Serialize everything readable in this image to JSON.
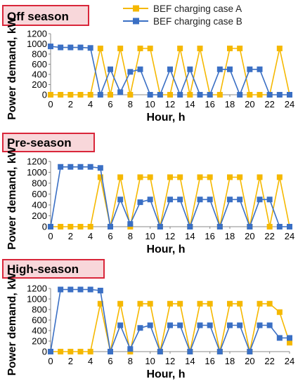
{
  "legend": {
    "items": [
      {
        "label": "BEF charging case A",
        "color": "#F5B800"
      },
      {
        "label": "BEF charging case B",
        "color": "#3A6FC4"
      }
    ]
  },
  "colors": {
    "panel_label_bg": "#F8D7DA",
    "panel_label_border": "#D9263A",
    "axis": "#888888",
    "grid": "#D9D9D9"
  },
  "chart_data": [
    {
      "type": "line",
      "title": "Off season",
      "xlabel": "Hour, h",
      "ylabel": "Power demand, kW",
      "xlim": [
        0,
        24
      ],
      "ylim": [
        0,
        1200
      ],
      "xticks": [
        "0",
        "2",
        "4",
        "6",
        "8",
        "10",
        "12",
        "14",
        "16",
        "18",
        "20",
        "22",
        "24"
      ],
      "yticks": [
        "0",
        "200",
        "400",
        "600",
        "800",
        "1000",
        "1200"
      ],
      "grid": false,
      "legend_position": "top-right",
      "series": [
        {
          "name": "BEF charging case A",
          "x": [
            0,
            1,
            2,
            3,
            4,
            5,
            6,
            7,
            8,
            9,
            10,
            11,
            12,
            13,
            14,
            15,
            16,
            17,
            18,
            19,
            20,
            21,
            22,
            23,
            24
          ],
          "values": [
            0,
            0,
            0,
            0,
            0,
            910,
            0,
            910,
            0,
            910,
            910,
            0,
            0,
            910,
            0,
            910,
            0,
            0,
            910,
            910,
            0,
            0,
            0,
            910,
            0
          ]
        },
        {
          "name": "BEF charging case B",
          "x": [
            0,
            1,
            2,
            3,
            4,
            5,
            6,
            7,
            8,
            9,
            10,
            11,
            12,
            13,
            14,
            15,
            16,
            17,
            18,
            19,
            20,
            21,
            22,
            23,
            24
          ],
          "values": [
            950,
            930,
            930,
            930,
            920,
            0,
            500,
            50,
            450,
            500,
            0,
            0,
            500,
            0,
            500,
            0,
            0,
            500,
            500,
            0,
            500,
            500,
            0,
            0,
            0
          ]
        }
      ]
    },
    {
      "type": "line",
      "title": "Pre-season",
      "xlabel": "Hour, h",
      "ylabel": "Power demand, kW",
      "xlim": [
        0,
        24
      ],
      "ylim": [
        0,
        1200
      ],
      "xticks": [
        "0",
        "2",
        "4",
        "6",
        "8",
        "10",
        "12",
        "14",
        "16",
        "18",
        "20",
        "22",
        "24"
      ],
      "yticks": [
        "0",
        "200",
        "400",
        "600",
        "800",
        "1000",
        "1200"
      ],
      "grid": false,
      "series": [
        {
          "name": "BEF charging case A",
          "x": [
            0,
            1,
            2,
            3,
            4,
            5,
            6,
            7,
            8,
            9,
            10,
            11,
            12,
            13,
            14,
            15,
            16,
            17,
            18,
            19,
            20,
            21,
            22,
            23,
            24
          ],
          "values": [
            0,
            0,
            0,
            0,
            0,
            910,
            0,
            910,
            0,
            910,
            910,
            0,
            910,
            910,
            0,
            910,
            910,
            0,
            910,
            910,
            0,
            910,
            0,
            910,
            0
          ]
        },
        {
          "name": "BEF charging case B",
          "x": [
            0,
            1,
            2,
            3,
            4,
            5,
            6,
            7,
            8,
            9,
            10,
            11,
            12,
            13,
            14,
            15,
            16,
            17,
            18,
            19,
            20,
            21,
            22,
            23,
            24
          ],
          "values": [
            0,
            1100,
            1100,
            1100,
            1100,
            1080,
            0,
            500,
            50,
            450,
            500,
            0,
            500,
            500,
            0,
            500,
            500,
            0,
            500,
            500,
            0,
            500,
            500,
            0,
            0
          ]
        }
      ]
    },
    {
      "type": "line",
      "title": "High-season",
      "xlabel": "Hour, h",
      "ylabel": "Power demand, kW",
      "xlim": [
        0,
        24
      ],
      "ylim": [
        0,
        1200
      ],
      "xticks": [
        "0",
        "2",
        "4",
        "6",
        "8",
        "10",
        "12",
        "14",
        "16",
        "18",
        "20",
        "22",
        "24"
      ],
      "yticks": [
        "0",
        "200",
        "400",
        "600",
        "800",
        "1000",
        "1200"
      ],
      "grid": false,
      "series": [
        {
          "name": "BEF charging case A",
          "x": [
            0,
            1,
            2,
            3,
            4,
            5,
            6,
            7,
            8,
            9,
            10,
            11,
            12,
            13,
            14,
            15,
            16,
            17,
            18,
            19,
            20,
            21,
            22,
            23,
            24
          ],
          "values": [
            0,
            0,
            0,
            0,
            0,
            910,
            0,
            910,
            0,
            910,
            910,
            0,
            910,
            910,
            0,
            910,
            910,
            0,
            910,
            910,
            0,
            910,
            910,
            750,
            170
          ]
        },
        {
          "name": "BEF charging case B",
          "x": [
            0,
            1,
            2,
            3,
            4,
            5,
            6,
            7,
            8,
            9,
            10,
            11,
            12,
            13,
            14,
            15,
            16,
            17,
            18,
            19,
            20,
            21,
            22,
            23,
            24
          ],
          "values": [
            0,
            1180,
            1180,
            1180,
            1180,
            1160,
            0,
            500,
            50,
            450,
            500,
            0,
            500,
            500,
            0,
            500,
            500,
            0,
            500,
            500,
            0,
            500,
            500,
            260,
            260
          ]
        }
      ]
    }
  ]
}
